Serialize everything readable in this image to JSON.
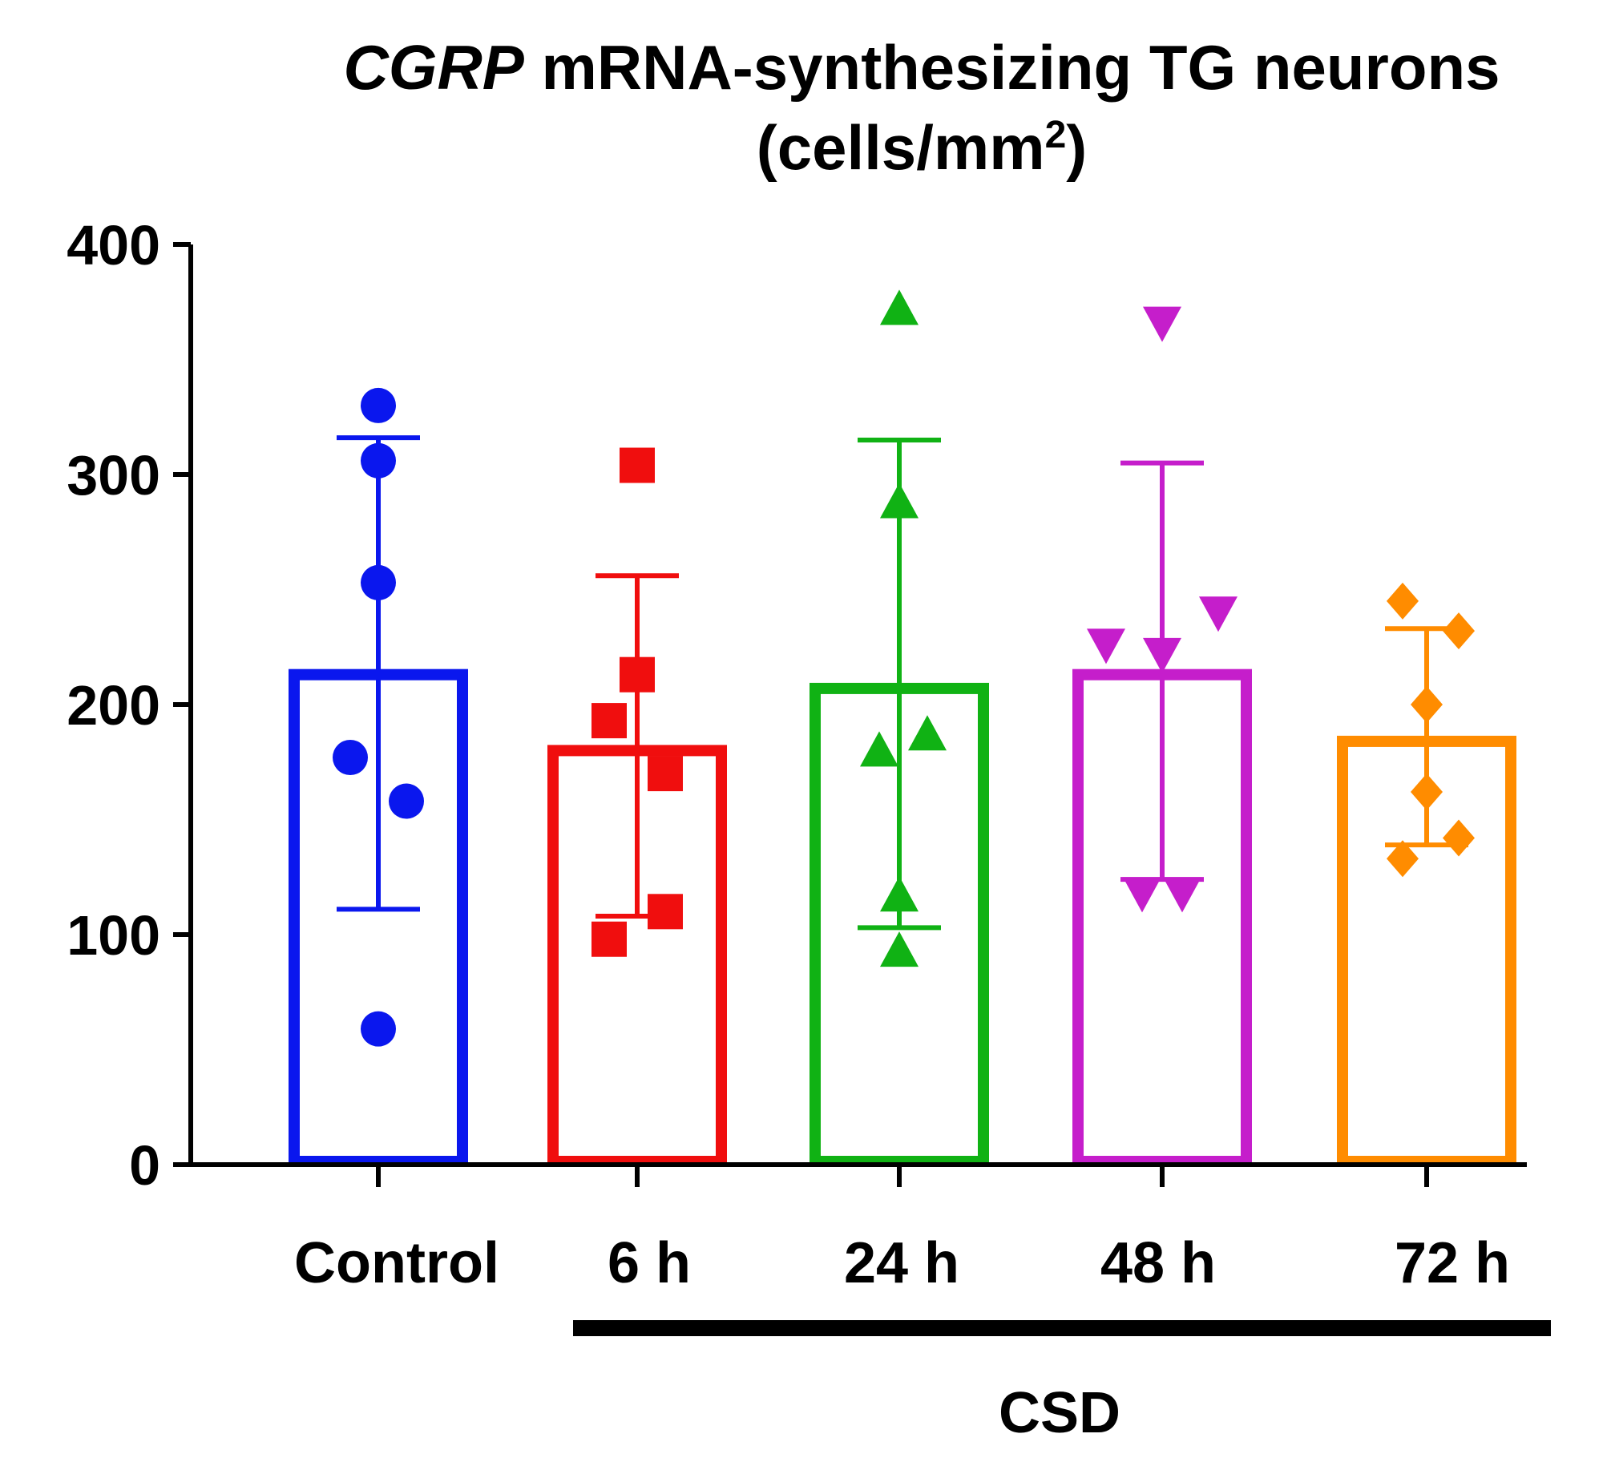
{
  "chart_data": {
    "type": "bar",
    "title_italic": "CGRP",
    "title_rest": " mRNA-synthesizing TG neurons",
    "ylabel_text": "(cells/mm",
    "ylabel_sup": "2",
    "ylabel_close": ")",
    "ylim": [
      0,
      400
    ],
    "yticks": [
      "0",
      "100",
      "200",
      "300",
      "400"
    ],
    "categories": [
      "Control",
      "6 h",
      "24 h",
      "48 h",
      "72 h"
    ],
    "group_label": "CSD",
    "grid": false,
    "series": [
      {
        "name": "Control",
        "color": "#0a17ee",
        "marker": "circle",
        "mean": 213,
        "err_low": 111,
        "err_high": 316,
        "points": [
          330,
          306,
          253,
          177,
          158,
          59
        ]
      },
      {
        "name": "6 h",
        "color": "#f00e0e",
        "marker": "square",
        "mean": 180,
        "err_low": 108,
        "err_high": 256,
        "points": [
          304,
          213,
          193,
          170,
          110,
          98
        ]
      },
      {
        "name": "24 h",
        "color": "#10b214",
        "marker": "triangle-up",
        "mean": 207,
        "err_low": 103,
        "err_high": 315,
        "points": [
          372,
          288,
          187,
          180,
          117,
          93
        ]
      },
      {
        "name": "48 h",
        "color": "#c51ecb",
        "marker": "triangle-down",
        "mean": 213,
        "err_low": 124,
        "err_high": 305,
        "points": [
          366,
          240,
          226,
          222,
          118,
          118
        ]
      },
      {
        "name": "72 h",
        "color": "#ff8c00",
        "marker": "diamond",
        "mean": 184,
        "err_low": 139,
        "err_high": 233,
        "points": [
          245,
          232,
          200,
          162,
          142,
          133
        ]
      }
    ]
  }
}
